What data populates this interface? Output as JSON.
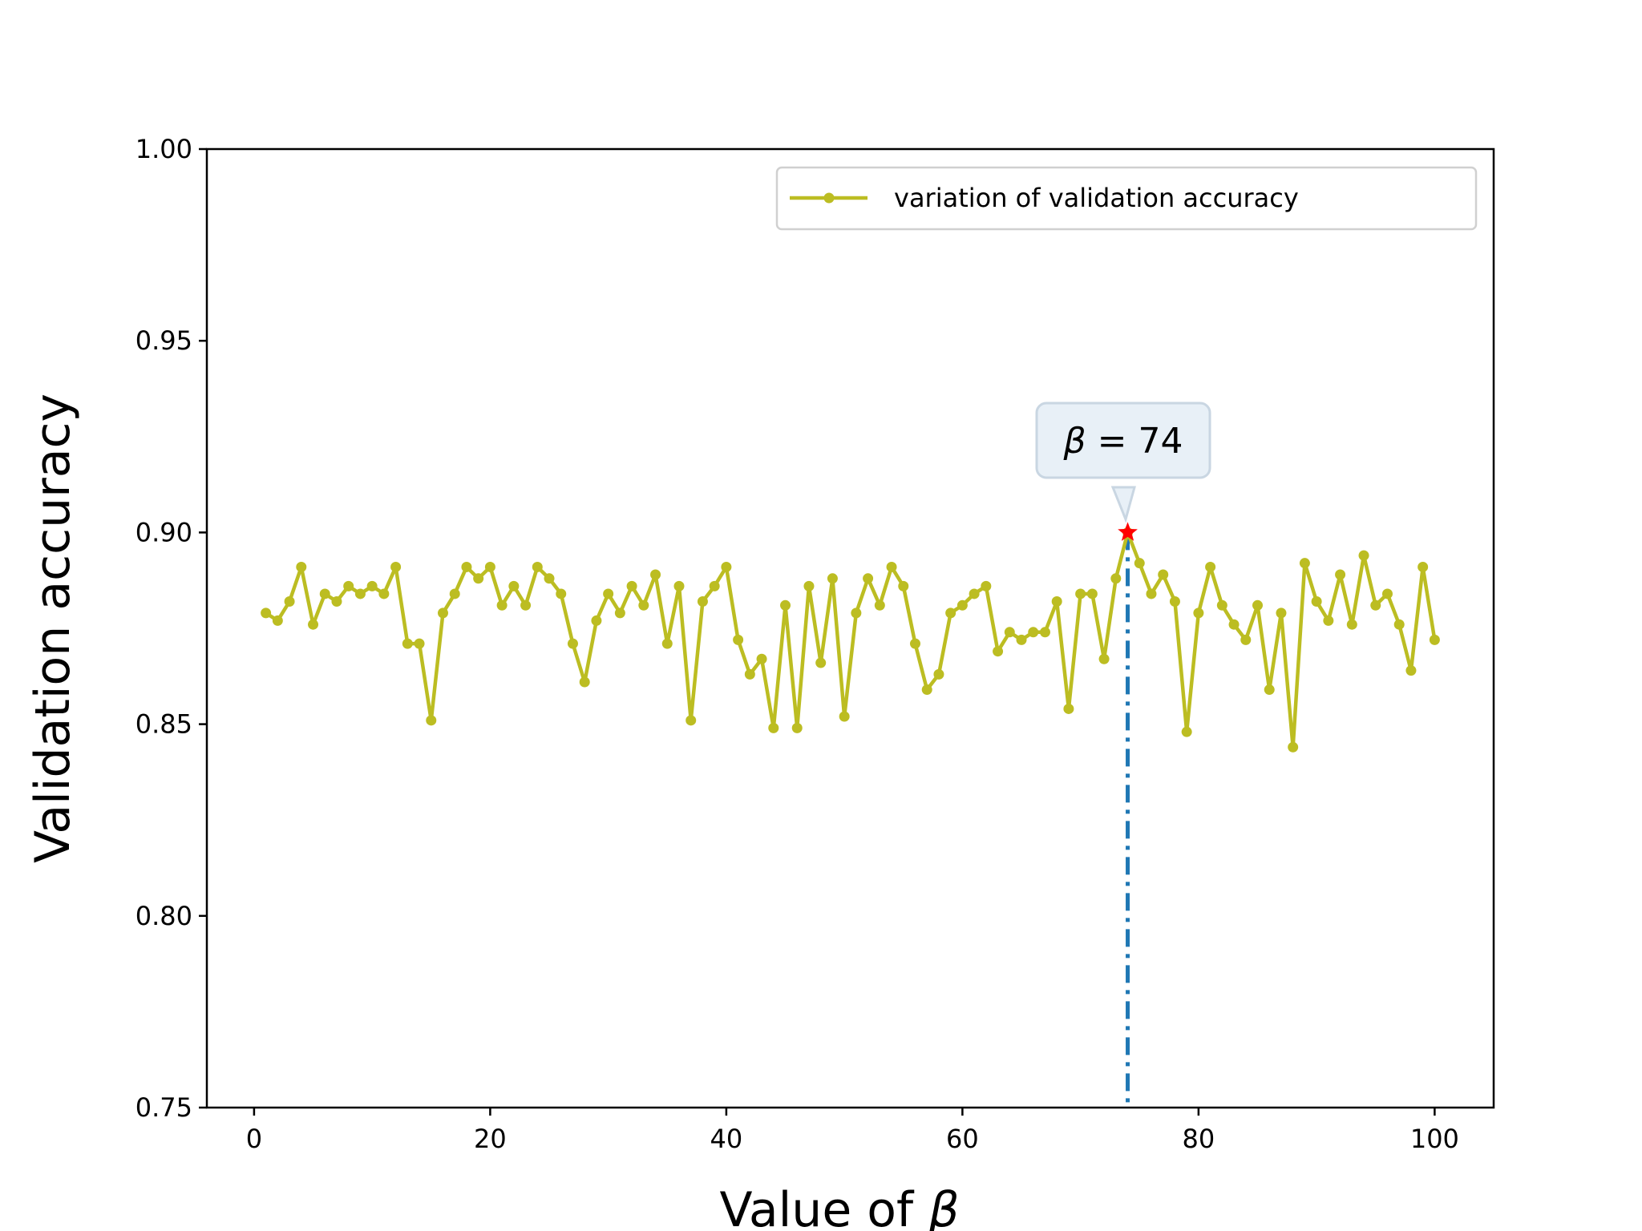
{
  "chart_data": {
    "type": "line",
    "xlabel_prefix": "Value of ",
    "xlabel_symbol": "β",
    "ylabel": "Validation accuracy",
    "xlim": [
      -4,
      105
    ],
    "ylim": [
      0.75,
      1.0
    ],
    "xticks": [
      0,
      20,
      40,
      60,
      80,
      100
    ],
    "xtick_labels": [
      "0",
      "20",
      "40",
      "60",
      "80",
      "100"
    ],
    "yticks": [
      0.75,
      0.8,
      0.85,
      0.9,
      0.95,
      1.0
    ],
    "ytick_labels": [
      "0.75",
      "0.80",
      "0.85",
      "0.90",
      "0.95",
      "1.00"
    ],
    "legend_position": "top-right",
    "series": [
      {
        "name": "variation of validation accuracy",
        "color": "#bcbd22",
        "x": [
          1,
          2,
          3,
          4,
          5,
          6,
          7,
          8,
          9,
          10,
          11,
          12,
          13,
          14,
          15,
          16,
          17,
          18,
          19,
          20,
          21,
          22,
          23,
          24,
          25,
          26,
          27,
          28,
          29,
          30,
          31,
          32,
          33,
          34,
          35,
          36,
          37,
          38,
          39,
          40,
          41,
          42,
          43,
          44,
          45,
          46,
          47,
          48,
          49,
          50,
          51,
          52,
          53,
          54,
          55,
          56,
          57,
          58,
          59,
          60,
          61,
          62,
          63,
          64,
          65,
          66,
          67,
          68,
          69,
          70,
          71,
          72,
          73,
          74,
          75,
          76,
          77,
          78,
          79,
          80,
          81,
          82,
          83,
          84,
          85,
          86,
          87,
          88,
          89,
          90,
          91,
          92,
          93,
          94,
          95,
          96,
          97,
          98,
          99,
          100
        ],
        "values": [
          0.879,
          0.877,
          0.882,
          0.891,
          0.876,
          0.884,
          0.882,
          0.886,
          0.884,
          0.886,
          0.884,
          0.891,
          0.871,
          0.871,
          0.851,
          0.879,
          0.884,
          0.891,
          0.888,
          0.891,
          0.881,
          0.886,
          0.881,
          0.891,
          0.888,
          0.884,
          0.871,
          0.861,
          0.877,
          0.884,
          0.879,
          0.886,
          0.881,
          0.889,
          0.871,
          0.886,
          0.851,
          0.882,
          0.886,
          0.891,
          0.872,
          0.863,
          0.867,
          0.849,
          0.881,
          0.849,
          0.886,
          0.866,
          0.888,
          0.852,
          0.879,
          0.888,
          0.881,
          0.891,
          0.886,
          0.871,
          0.859,
          0.863,
          0.879,
          0.881,
          0.884,
          0.886,
          0.869,
          0.874,
          0.872,
          0.874,
          0.874,
          0.882,
          0.854,
          0.884,
          0.884,
          0.867,
          0.888,
          0.9,
          0.892,
          0.884,
          0.889,
          0.882,
          0.848,
          0.879,
          0.891,
          0.881,
          0.876,
          0.872,
          0.881,
          0.859,
          0.879,
          0.844,
          0.892,
          0.882,
          0.877,
          0.889,
          0.876,
          0.894,
          0.881,
          0.884,
          0.876,
          0.864,
          0.891,
          0.872
        ]
      }
    ],
    "best": {
      "x": 74,
      "y": 0.9,
      "marker_color": "#ff0000",
      "line_color": "#1f77b4"
    },
    "annotation": {
      "prefix": "β",
      "text": " = 74"
    }
  }
}
